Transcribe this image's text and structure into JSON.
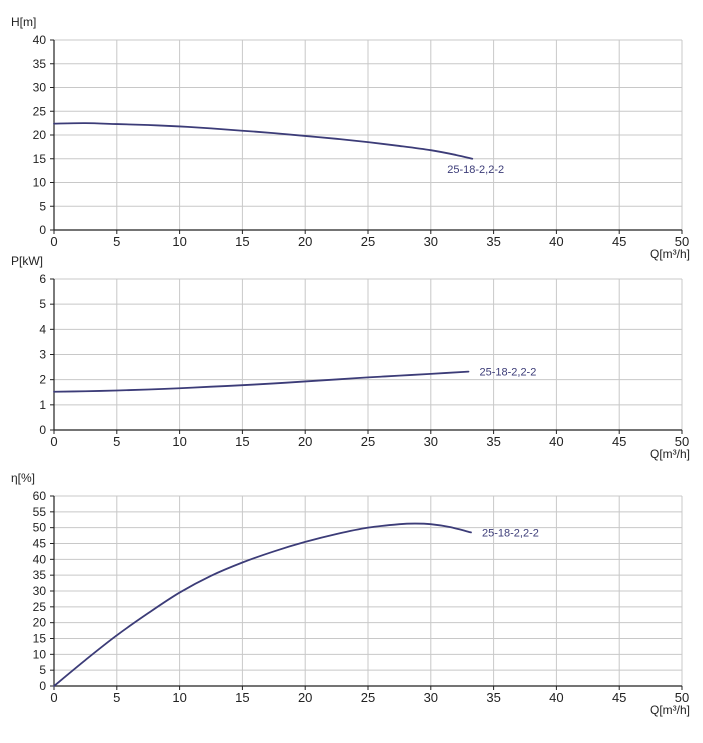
{
  "chart_data": [
    {
      "type": "line",
      "title": "",
      "ylabel": "H[m]",
      "xlabel": "Q[m³/h]",
      "xlim": [
        0,
        50
      ],
      "ylim": [
        0,
        40
      ],
      "x_ticks": [
        0,
        5,
        10,
        15,
        20,
        25,
        30,
        35,
        40,
        45,
        50
      ],
      "y_ticks": [
        0,
        5,
        10,
        15,
        20,
        25,
        30,
        35,
        40
      ],
      "grid": true,
      "series": [
        {
          "name": "25-18-2,2-2",
          "color": "#3c3c78",
          "x": [
            0,
            2.5,
            5,
            7.5,
            10,
            12.5,
            15,
            17.5,
            20,
            22.5,
            25,
            27.5,
            30,
            32,
            33.3
          ],
          "y": [
            22.4,
            22.5,
            22.3,
            22.1,
            21.8,
            21.4,
            20.9,
            20.4,
            19.8,
            19.2,
            18.5,
            17.7,
            16.8,
            15.8,
            15.0
          ]
        }
      ]
    },
    {
      "type": "line",
      "title": "",
      "ylabel": "P[kW]",
      "xlabel": "Q[m³/h]",
      "xlim": [
        0,
        50
      ],
      "ylim": [
        0,
        6
      ],
      "x_ticks": [
        0,
        5,
        10,
        15,
        20,
        25,
        30,
        35,
        40,
        45,
        50
      ],
      "y_ticks": [
        0,
        1,
        2,
        3,
        4,
        5,
        6
      ],
      "grid": true,
      "series": [
        {
          "name": "25-18-2,2-2",
          "color": "#3c3c78",
          "x": [
            0,
            2.5,
            5,
            7.5,
            10,
            12.5,
            15,
            17.5,
            20,
            22.5,
            25,
            27.5,
            30,
            33
          ],
          "y": [
            1.52,
            1.54,
            1.57,
            1.61,
            1.66,
            1.72,
            1.78,
            1.85,
            1.93,
            2.01,
            2.09,
            2.16,
            2.23,
            2.32
          ]
        }
      ]
    },
    {
      "type": "line",
      "title": "",
      "ylabel": "η[%]",
      "xlabel": "Q[m³/h]",
      "xlim": [
        0,
        50
      ],
      "ylim": [
        0,
        60
      ],
      "x_ticks": [
        0,
        5,
        10,
        15,
        20,
        25,
        30,
        35,
        40,
        45,
        50
      ],
      "y_ticks": [
        0,
        5,
        10,
        15,
        20,
        25,
        30,
        35,
        40,
        45,
        50,
        55,
        60
      ],
      "grid": true,
      "series": [
        {
          "name": "25-18-2,2-2",
          "color": "#3c3c78",
          "x": [
            0,
            2.5,
            5,
            7.5,
            10,
            12.5,
            15,
            17.5,
            20,
            22.5,
            25,
            27.5,
            28.8,
            30,
            31.5,
            33.2
          ],
          "y": [
            0,
            8.2,
            16.0,
            23.0,
            29.5,
            34.8,
            39.0,
            42.5,
            45.5,
            48.0,
            50.0,
            51.1,
            51.3,
            51.1,
            50.2,
            48.5
          ]
        }
      ]
    }
  ]
}
